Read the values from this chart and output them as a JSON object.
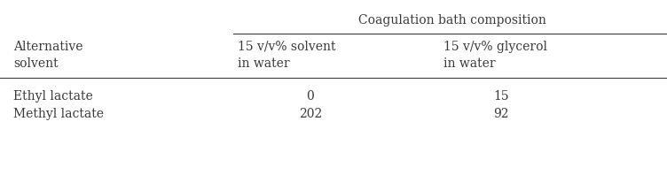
{
  "header_group": "Coagulation bath composition",
  "col1_header_line1": "Alternative",
  "col1_header_line2": "solvent",
  "col2_header_line1": "15 v/v% solvent",
  "col2_header_line2": "in water",
  "col3_header_line1": "15 v/v% glycerol",
  "col3_header_line2": "in water",
  "row1_col1": "Ethyl lactate",
  "row1_col2": "0",
  "row1_col3": "15",
  "row2_col1": "Methyl lactate",
  "row2_col2": "202",
  "row2_col3": "92",
  "background_color": "#ffffff",
  "text_color": "#3a3a3a",
  "font_size": 10.0,
  "fig_width": 7.52,
  "fig_height": 2.15
}
